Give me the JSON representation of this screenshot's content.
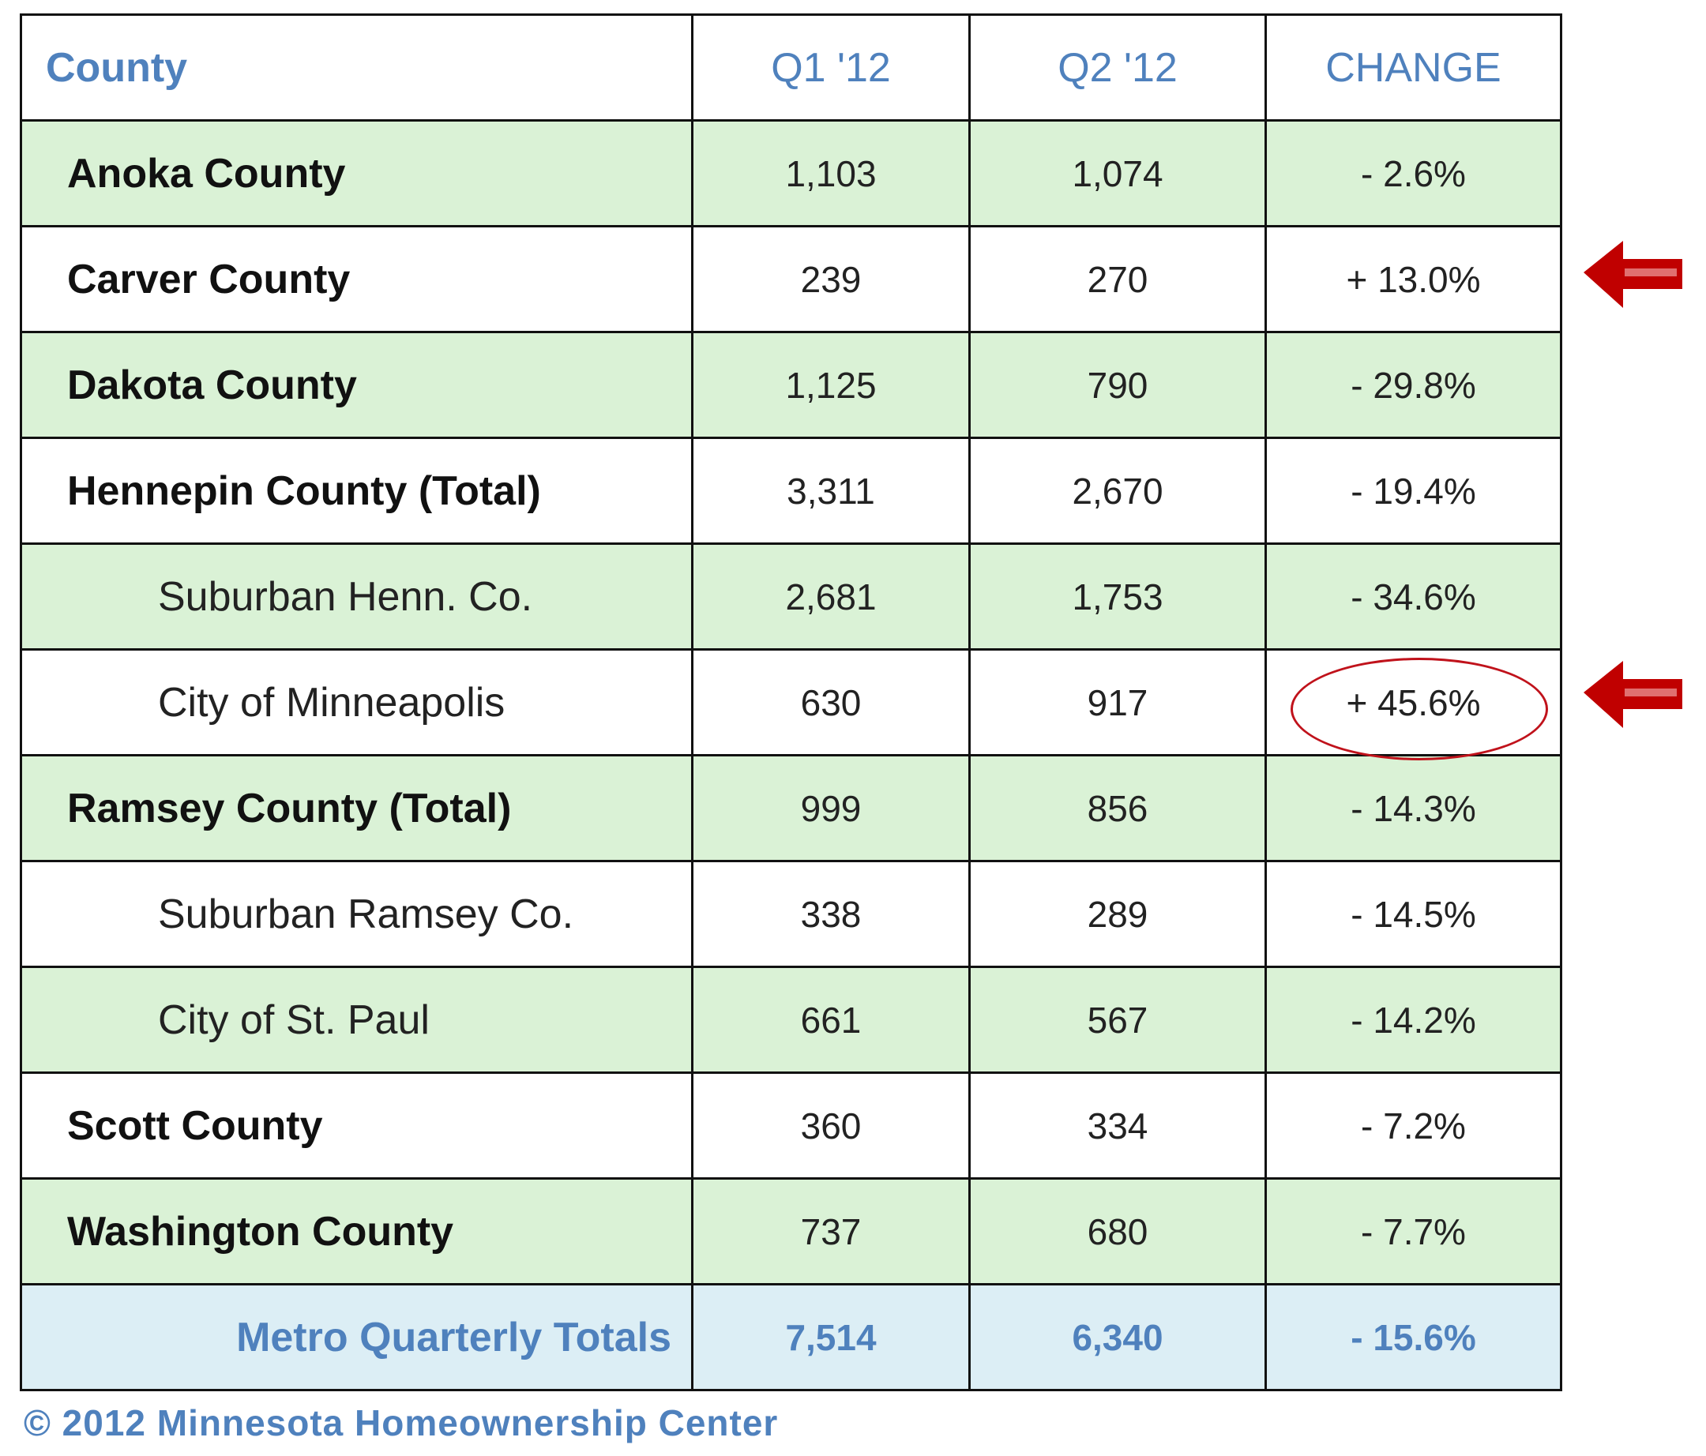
{
  "headers": {
    "county": "County",
    "q1": "Q1 '12",
    "q2": "Q2 '12",
    "change": "CHANGE"
  },
  "rows": [
    {
      "name": "Anoka County",
      "q1": "1,103",
      "q2": "1,074",
      "change": "- 2.6%",
      "sub": false
    },
    {
      "name": "Carver County",
      "q1": "239",
      "q2": "270",
      "change": "+ 13.0%",
      "sub": false,
      "highlight": "arrow"
    },
    {
      "name": "Dakota County",
      "q1": "1,125",
      "q2": "790",
      "change": "- 29.8%",
      "sub": false
    },
    {
      "name": "Hennepin County (Total)",
      "q1": "3,311",
      "q2": "2,670",
      "change": "- 19.4%",
      "sub": false
    },
    {
      "name": "Suburban Henn. Co.",
      "q1": "2,681",
      "q2": "1,753",
      "change": "- 34.6%",
      "sub": true
    },
    {
      "name": "City of Minneapolis",
      "q1": "630",
      "q2": "917",
      "change": "+ 45.6%",
      "sub": true,
      "highlight": "arrow-and-circle"
    },
    {
      "name": "Ramsey County (Total)",
      "q1": "999",
      "q2": "856",
      "change": "- 14.3%",
      "sub": false
    },
    {
      "name": "Suburban Ramsey Co.",
      "q1": "338",
      "q2": "289",
      "change": "- 14.5%",
      "sub": true
    },
    {
      "name": "City of St. Paul",
      "q1": "661",
      "q2": "567",
      "change": "- 14.2%",
      "sub": true
    },
    {
      "name": "Scott County",
      "q1": "360",
      "q2": "334",
      "change": "- 7.2%",
      "sub": false
    },
    {
      "name": "Washington County",
      "q1": "737",
      "q2": "680",
      "change": "- 7.7%",
      "sub": false
    }
  ],
  "totals": {
    "name": "Metro Quarterly Totals",
    "q1": "7,514",
    "q2": "6,340",
    "change": "- 15.6%"
  },
  "footer": "© 2012 Minnesota Homeownership Center",
  "colors": {
    "header_text": "#4f81bd",
    "green_row": "#daf2d6",
    "total_row": "#dceef5",
    "highlight": "#c00000"
  }
}
